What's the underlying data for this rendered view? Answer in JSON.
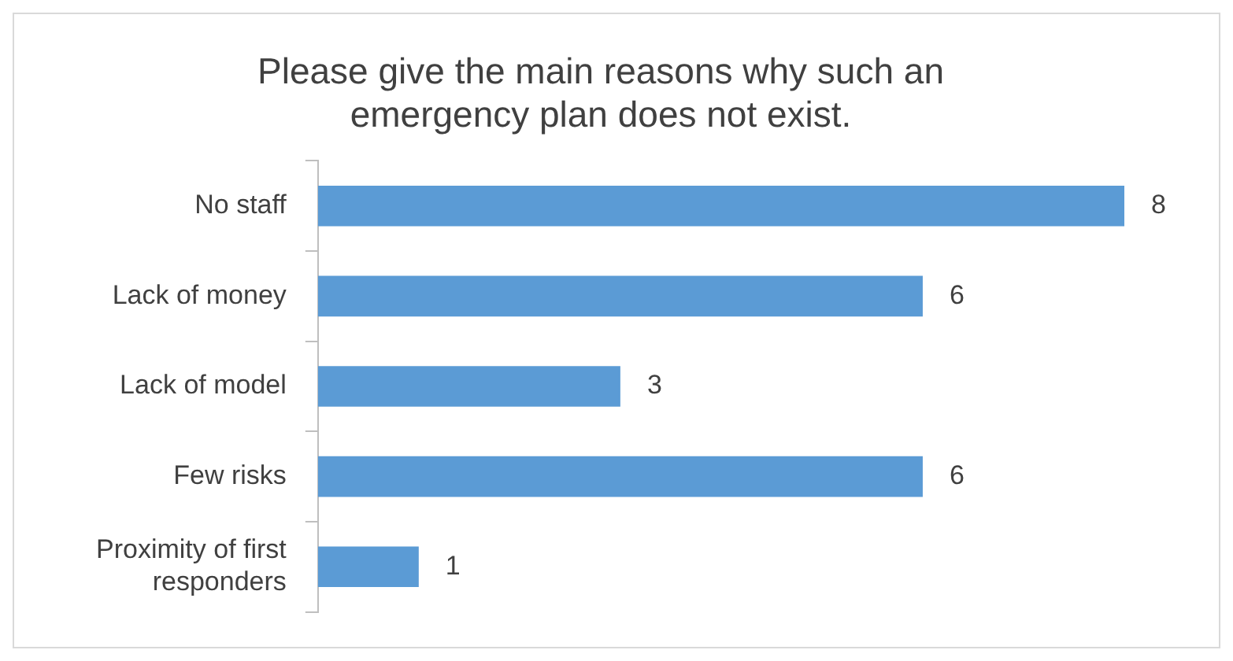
{
  "chart_data": {
    "type": "bar",
    "orientation": "horizontal",
    "title": "Please give the main reasons why such an emergency plan does not exist.",
    "categories": [
      "No staff",
      "Lack of money",
      "Lack of model",
      "Few risks",
      "Proximity of first responders"
    ],
    "values": [
      8,
      6,
      3,
      6,
      1
    ],
    "color": "#5b9bd5",
    "data_labels": true,
    "legend": false
  }
}
